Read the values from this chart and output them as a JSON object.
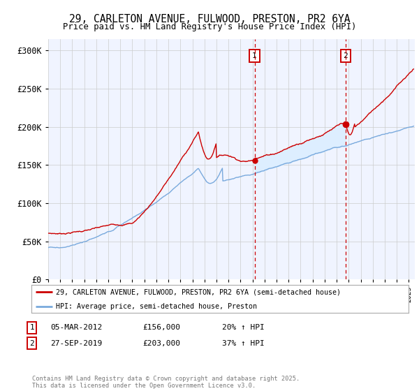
{
  "title_line1": "29, CARLETON AVENUE, FULWOOD, PRESTON, PR2 6YA",
  "title_line2": "Price paid vs. HM Land Registry's House Price Index (HPI)",
  "xlim_start": 1995.0,
  "xlim_end": 2025.5,
  "ylim_min": 0,
  "ylim_max": 315000,
  "yticks": [
    0,
    50000,
    100000,
    150000,
    200000,
    250000,
    300000
  ],
  "ytick_labels": [
    "£0",
    "£50K",
    "£100K",
    "£150K",
    "£200K",
    "£250K",
    "£300K"
  ],
  "sale1_date": 2012.17,
  "sale1_price": 156000,
  "sale2_date": 2019.74,
  "sale2_price": 203000,
  "red_color": "#cc0000",
  "blue_color": "#7aaadd",
  "shaded_region_color": "#ddeeff",
  "legend_label_red": "29, CARLETON AVENUE, FULWOOD, PRESTON, PR2 6YA (semi-detached house)",
  "legend_label_blue": "HPI: Average price, semi-detached house, Preston",
  "footnote": "Contains HM Land Registry data © Crown copyright and database right 2025.\nThis data is licensed under the Open Government Licence v3.0.",
  "bg_color": "#f0f4ff"
}
